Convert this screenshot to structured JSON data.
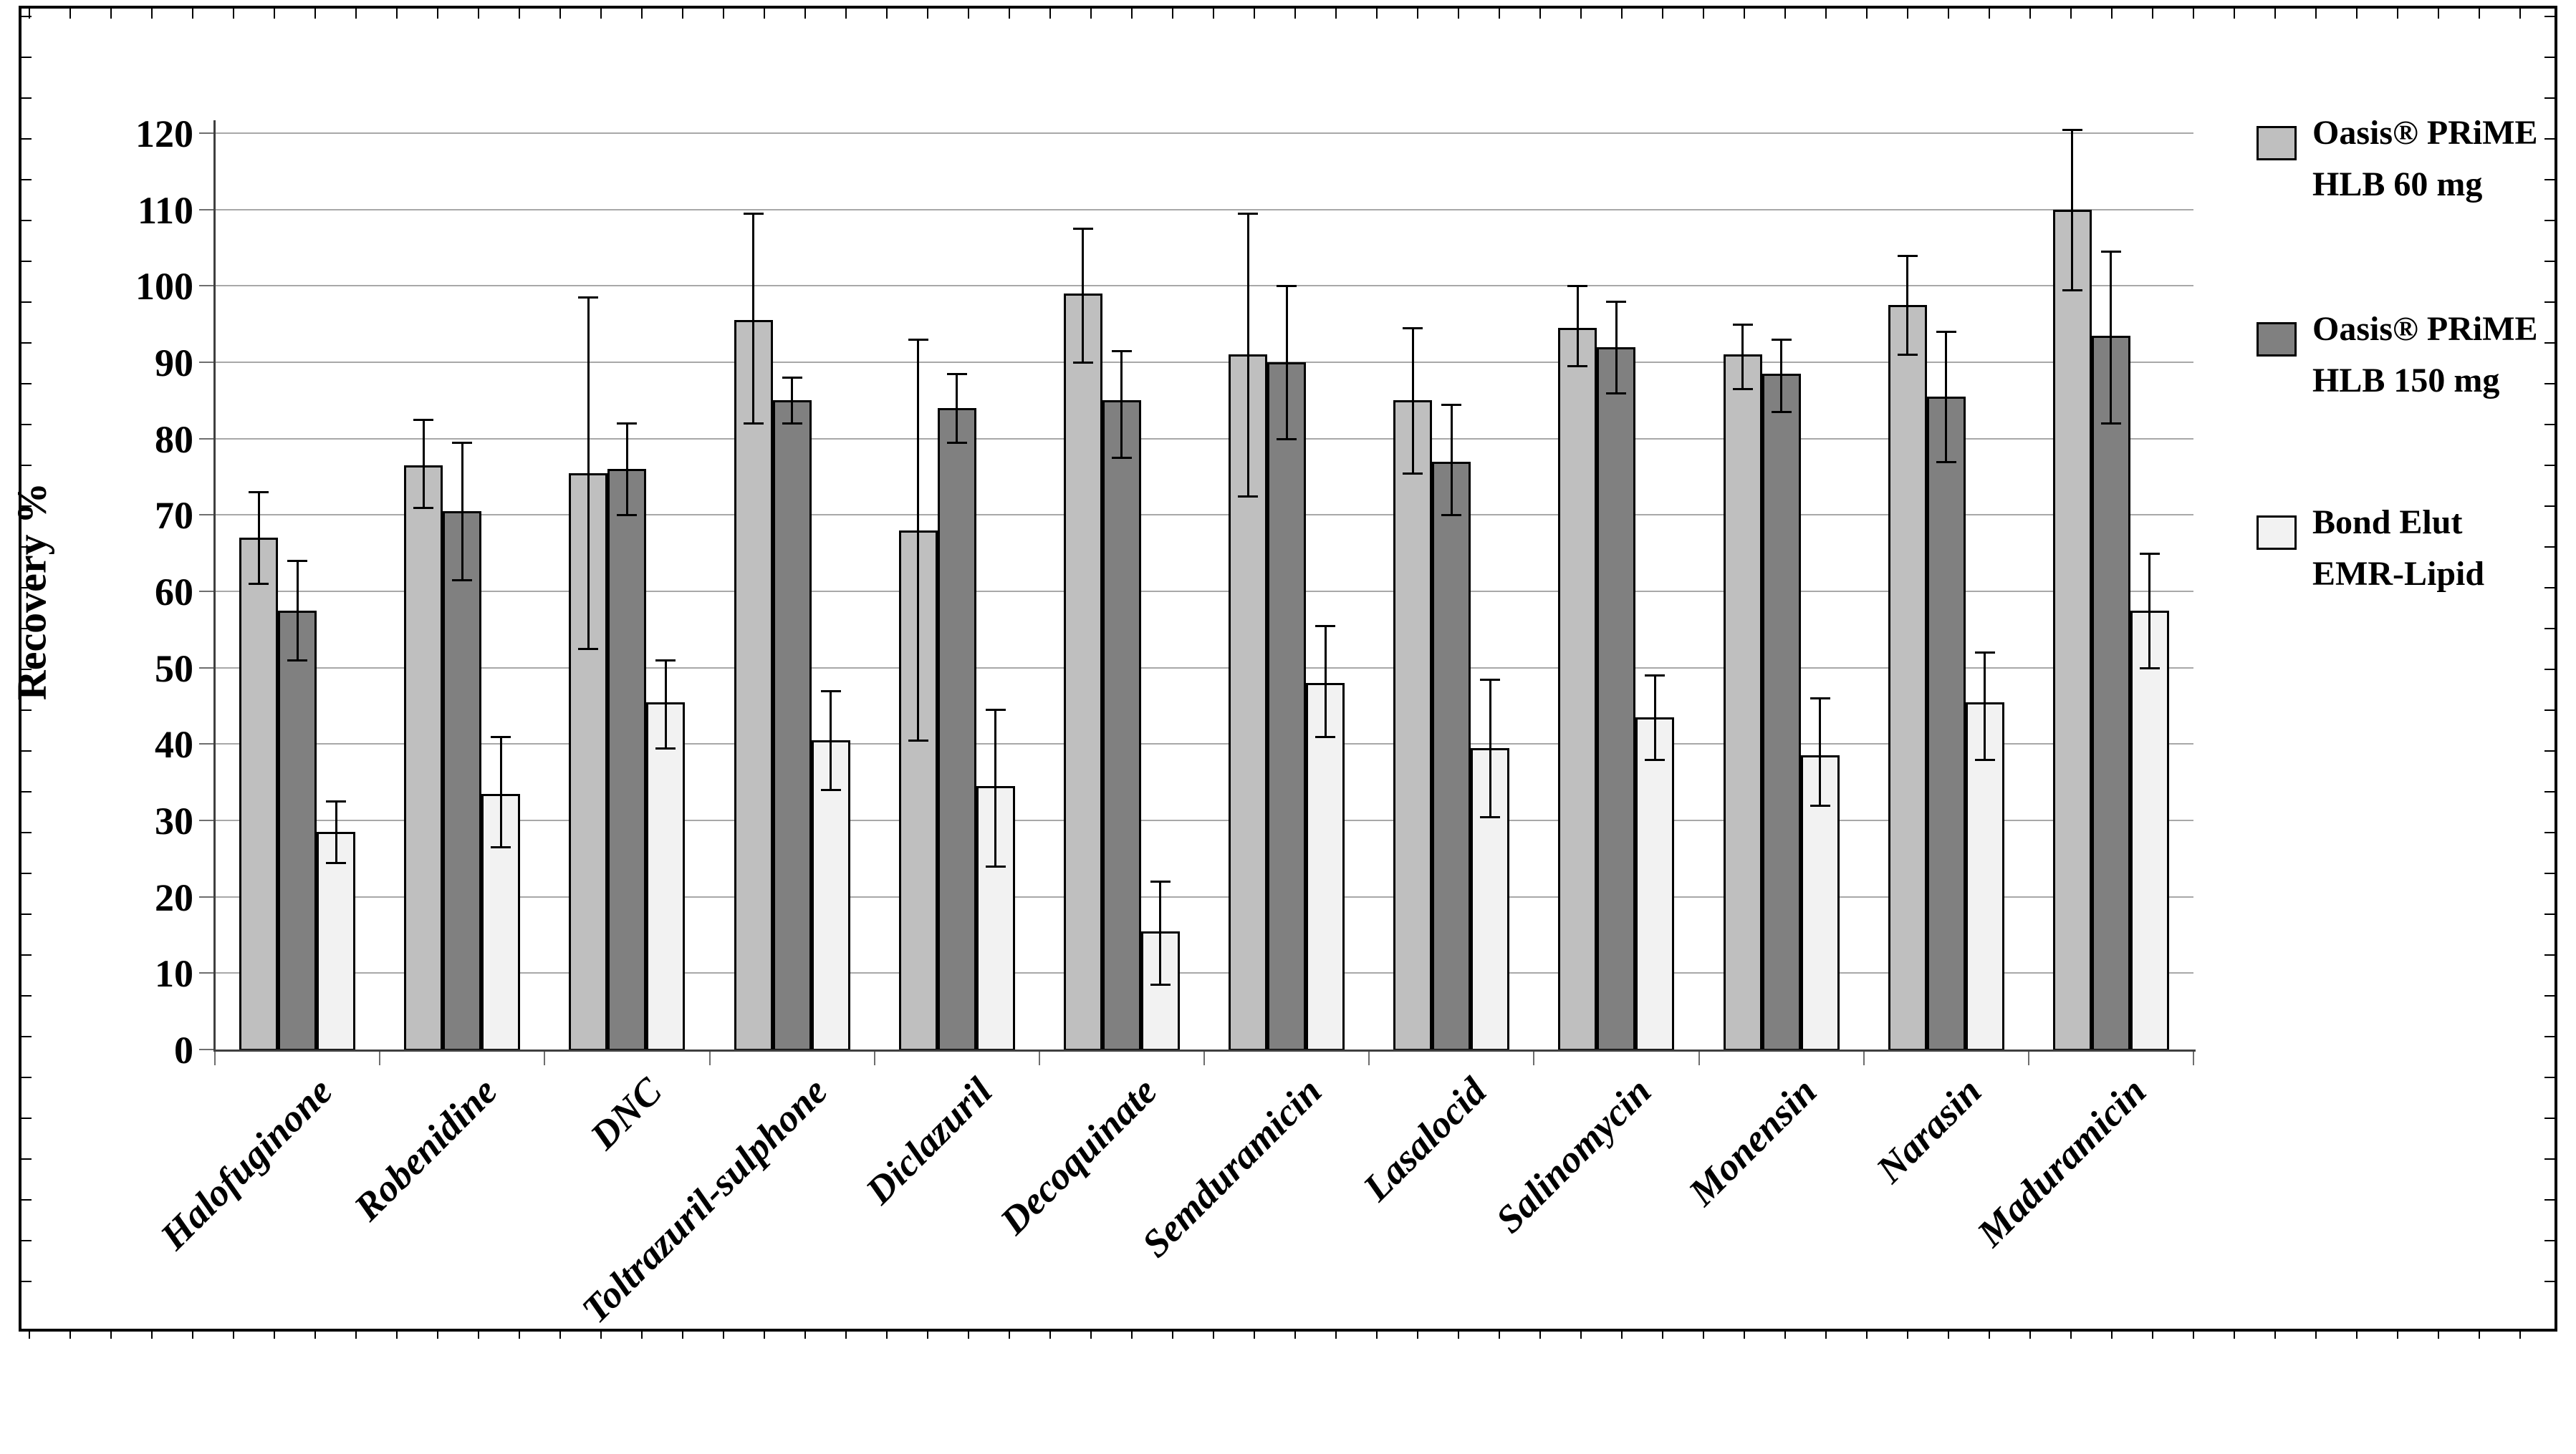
{
  "chart_data": {
    "type": "bar",
    "title": "",
    "ylabel": "Recovery %",
    "ylim": [
      0,
      120
    ],
    "ytick_step": 10,
    "grid": true,
    "legend_position": "right",
    "categories": [
      "Halofuginone",
      "Robenidine",
      "DNC",
      "Toltrazuril-sulphone",
      "Diclazuril",
      "Decoquinate",
      "Semduramicin",
      "Lasalocid",
      "Salinomycin",
      "Monensin",
      "Narasin",
      "Maduramicin"
    ],
    "series": [
      {
        "name": "Oasis® PRiME HLB 60 mg",
        "legend_lines": [
          "Oasis® PRiME",
          "HLB 60 mg"
        ],
        "color": "#bfbfbf",
        "values": [
          67,
          76.5,
          75.5,
          95.5,
          68,
          99,
          91,
          85,
          94.5,
          91,
          97.5,
          110
        ],
        "err_low": [
          61,
          71,
          52.5,
          82,
          40.5,
          90,
          72.5,
          75.5,
          89.5,
          86.5,
          91,
          99.5
        ],
        "err_high": [
          73,
          82.5,
          98.5,
          109.5,
          93,
          107.5,
          109.5,
          94.5,
          100,
          95,
          104,
          120.5
        ]
      },
      {
        "name": "Oasis® PRiME HLB 150 mg",
        "legend_lines": [
          "Oasis® PRiME",
          "HLB 150 mg"
        ],
        "color": "#808080",
        "values": [
          57.5,
          70.5,
          76,
          85,
          84,
          85,
          90,
          77,
          92,
          88.5,
          85.5,
          93.5
        ],
        "err_low": [
          51,
          61.5,
          70,
          82,
          79.5,
          77.5,
          80,
          70,
          86,
          83.5,
          77,
          82
        ],
        "err_high": [
          64,
          79.5,
          82,
          88,
          88.5,
          91.5,
          100,
          84.5,
          98,
          93,
          94,
          104.5
        ]
      },
      {
        "name": "Bond Elut EMR-Lipid",
        "legend_lines": [
          "Bond Elut",
          "EMR-Lipid"
        ],
        "color": "#f2f2f2",
        "values": [
          28.5,
          33.5,
          45.5,
          40.5,
          34.5,
          15.5,
          48,
          39.5,
          43.5,
          38.5,
          45.5,
          57.5
        ],
        "err_low": [
          24.5,
          26.5,
          39.5,
          34,
          24,
          8.5,
          41,
          30.5,
          38,
          32,
          38,
          50
        ],
        "err_high": [
          32.5,
          41,
          51,
          47,
          44.5,
          22,
          55.5,
          48.5,
          49,
          46,
          52,
          65
        ]
      }
    ]
  }
}
